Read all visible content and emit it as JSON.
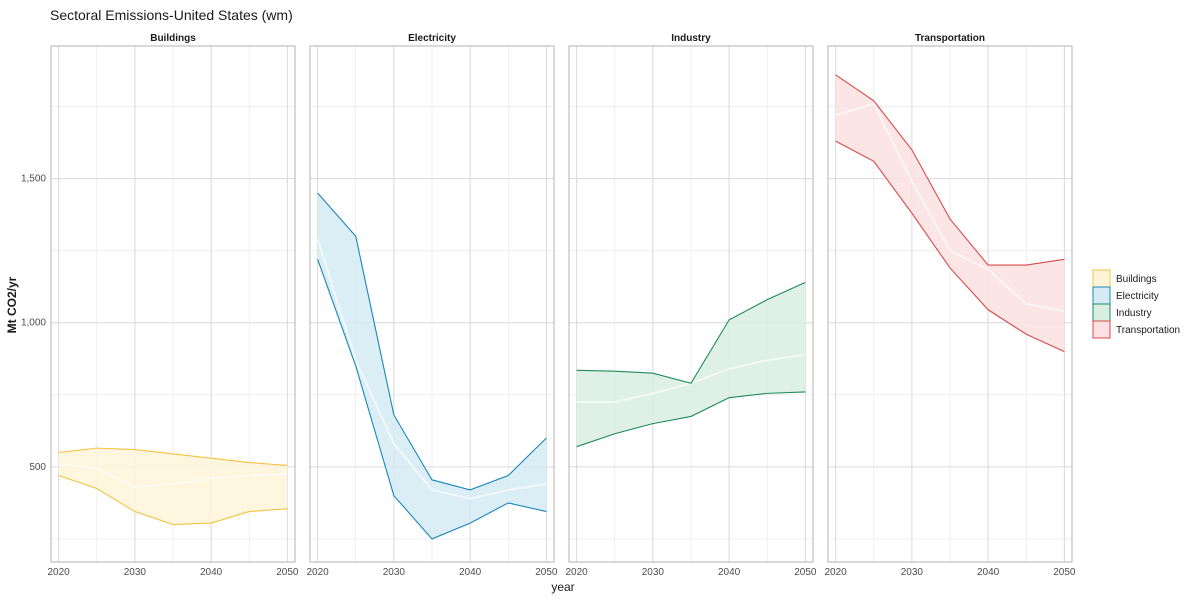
{
  "chart_data": {
    "type": "area",
    "title": "Sectoral Emissions-United States (wm)",
    "xlabel": "year",
    "ylabel": "Mt CO2/yr",
    "xlim": [
      2019,
      2051
    ],
    "ylim": [
      170,
      1960
    ],
    "x_ticks": [
      2020,
      2030,
      2040,
      2050
    ],
    "x_tick_labels": [
      "2020",
      "2030",
      "2040",
      "2050"
    ],
    "y_ticks": [
      500,
      1000,
      1500
    ],
    "y_tick_labels": [
      "500",
      "1,000",
      "1,500"
    ],
    "grid": true,
    "legend_position": "right",
    "panels": [
      {
        "name": "Buildings",
        "color": "#f5c342",
        "fill": "#fef4d8",
        "x": [
          2020,
          2025,
          2030,
          2035,
          2040,
          2045,
          2050
        ],
        "upper": [
          550,
          565,
          560,
          545,
          530,
          515,
          505
        ],
        "lower": [
          470,
          425,
          345,
          300,
          305,
          345,
          355
        ],
        "mid": [
          510,
          495,
          430,
          440,
          460,
          470,
          475
        ]
      },
      {
        "name": "Electricity",
        "color": "#1a87b8",
        "fill": "#d5ebf4",
        "x": [
          2020,
          2025,
          2030,
          2035,
          2040,
          2045,
          2050
        ],
        "upper": [
          1450,
          1300,
          680,
          455,
          420,
          470,
          600
        ],
        "lower": [
          1220,
          850,
          400,
          250,
          305,
          375,
          345
        ],
        "mid": [
          1290,
          870,
          580,
          420,
          390,
          420,
          440
        ]
      },
      {
        "name": "Industry",
        "color": "#1f8a5e",
        "fill": "#d9eee3",
        "x": [
          2020,
          2025,
          2030,
          2035,
          2040,
          2045,
          2050
        ],
        "upper": [
          835,
          832,
          825,
          790,
          1010,
          1080,
          1140
        ],
        "lower": [
          570,
          615,
          650,
          675,
          740,
          755,
          760
        ],
        "mid": [
          725,
          725,
          755,
          790,
          840,
          870,
          890
        ]
      },
      {
        "name": "Transportation",
        "color": "#d94a4a",
        "fill": "#fbe1e1",
        "x": [
          2020,
          2025,
          2030,
          2035,
          2040,
          2045,
          2050
        ],
        "upper": [
          1860,
          1770,
          1600,
          1360,
          1200,
          1200,
          1220
        ],
        "lower": [
          1630,
          1560,
          1380,
          1190,
          1045,
          960,
          900
        ],
        "mid": [
          1720,
          1760,
          1490,
          1250,
          1185,
          1065,
          1040
        ]
      }
    ]
  }
}
